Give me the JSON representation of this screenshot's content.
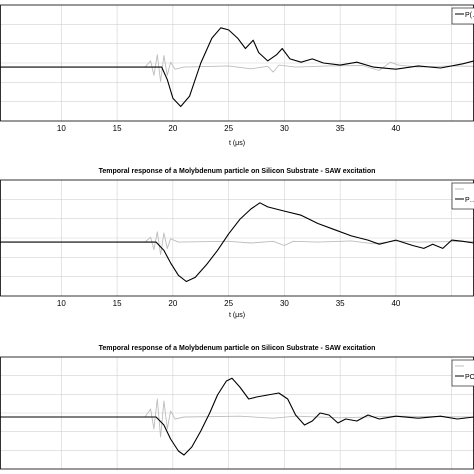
{
  "chart_data": [
    {
      "type": "line",
      "title": "",
      "xlabel": "t (μs)",
      "ylabel": "",
      "xlim": [
        4.5,
        47
      ],
      "x_ticks": [
        10,
        15,
        20,
        25,
        30,
        35,
        40
      ],
      "grid": true,
      "legend": {
        "placement": "top-right",
        "entries": [
          "P(…"
        ]
      },
      "series": [
        {
          "name": "P(…",
          "color": "#000000",
          "points": [
            [
              4.5,
              0
            ],
            [
              19,
              0
            ],
            [
              19.5,
              -0.3
            ],
            [
              20,
              -0.75
            ],
            [
              20.7,
              -0.95
            ],
            [
              21.5,
              -0.7
            ],
            [
              22.5,
              0.1
            ],
            [
              23.5,
              0.7
            ],
            [
              24.3,
              0.95
            ],
            [
              25,
              0.9
            ],
            [
              25.8,
              0.7
            ],
            [
              26.5,
              0.45
            ],
            [
              27.2,
              0.65
            ],
            [
              27.7,
              0.35
            ],
            [
              28.5,
              0.15
            ],
            [
              29.3,
              0.3
            ],
            [
              29.8,
              0.45
            ],
            [
              30.5,
              0.2
            ],
            [
              31.5,
              0.12
            ],
            [
              32.5,
              0.2
            ],
            [
              33.5,
              0.1
            ],
            [
              35,
              0.05
            ],
            [
              36.5,
              0.12
            ],
            [
              38,
              0
            ],
            [
              40,
              -0.05
            ],
            [
              42,
              0.03
            ],
            [
              44,
              -0.02
            ],
            [
              46,
              0.08
            ],
            [
              47,
              0.15
            ]
          ]
        },
        {
          "name": "",
          "color": "#bdbdbd",
          "points": [
            [
              4.5,
              0
            ],
            [
              17.5,
              0
            ],
            [
              18,
              0.15
            ],
            [
              18.3,
              -0.2
            ],
            [
              18.6,
              0.3
            ],
            [
              18.9,
              -0.35
            ],
            [
              19.2,
              0.28
            ],
            [
              19.5,
              -0.2
            ],
            [
              19.8,
              0.12
            ],
            [
              20.2,
              -0.05
            ],
            [
              21,
              0
            ],
            [
              25,
              0.03
            ],
            [
              27,
              -0.04
            ],
            [
              28.5,
              0.02
            ],
            [
              29,
              -0.12
            ],
            [
              29.5,
              0.05
            ],
            [
              31,
              0
            ],
            [
              34,
              0.03
            ],
            [
              37,
              0.04
            ],
            [
              38.5,
              -0.08
            ],
            [
              39.5,
              0.12
            ],
            [
              40.2,
              0.05
            ],
            [
              42,
              0
            ],
            [
              45,
              0.03
            ],
            [
              47,
              0.02
            ]
          ]
        }
      ]
    },
    {
      "type": "line",
      "title": "Temporal response of a Molybdenum particle on Silicon Substrate - SAW excitation",
      "xlabel": "t (μs)",
      "ylabel": "",
      "xlim": [
        4.5,
        47
      ],
      "x_ticks": [
        10,
        15,
        20,
        25,
        30,
        35,
        40
      ],
      "grid": true,
      "legend": {
        "placement": "top-right",
        "entries": [
          "",
          "P…"
        ]
      },
      "series": [
        {
          "name": "P…",
          "color": "#000000",
          "points": [
            [
              4.5,
              0
            ],
            [
              18.5,
              0
            ],
            [
              19.2,
              -0.2
            ],
            [
              19.8,
              -0.5
            ],
            [
              20.5,
              -0.8
            ],
            [
              21.2,
              -0.95
            ],
            [
              22,
              -0.85
            ],
            [
              23,
              -0.55
            ],
            [
              24,
              -0.2
            ],
            [
              25,
              0.2
            ],
            [
              26,
              0.55
            ],
            [
              27,
              0.8
            ],
            [
              27.8,
              0.95
            ],
            [
              28.5,
              0.85
            ],
            [
              30,
              0.75
            ],
            [
              31.5,
              0.65
            ],
            [
              33,
              0.45
            ],
            [
              34.5,
              0.3
            ],
            [
              36,
              0.15
            ],
            [
              37.5,
              0.05
            ],
            [
              38.5,
              -0.05
            ],
            [
              40,
              0.05
            ],
            [
              41.5,
              -0.08
            ],
            [
              42.5,
              -0.15
            ],
            [
              43.3,
              -0.05
            ],
            [
              44.2,
              -0.15
            ],
            [
              45,
              0.05
            ],
            [
              46,
              0.02
            ],
            [
              47,
              -0.02
            ]
          ]
        },
        {
          "name": "",
          "color": "#bdbdbd",
          "points": [
            [
              4.5,
              0
            ],
            [
              17.5,
              0
            ],
            [
              18,
              0.12
            ],
            [
              18.3,
              -0.18
            ],
            [
              18.6,
              0.25
            ],
            [
              18.9,
              -0.3
            ],
            [
              19.2,
              0.22
            ],
            [
              19.5,
              -0.15
            ],
            [
              19.8,
              0.08
            ],
            [
              20.5,
              0
            ],
            [
              25,
              0.02
            ],
            [
              27,
              -0.02
            ],
            [
              29,
              0.02
            ],
            [
              30,
              -0.08
            ],
            [
              30.8,
              0.02
            ],
            [
              33,
              0
            ],
            [
              36,
              0.03
            ],
            [
              38,
              -0.04
            ],
            [
              40,
              0.03
            ],
            [
              42,
              0
            ],
            [
              47,
              0.02
            ]
          ]
        }
      ]
    },
    {
      "type": "line",
      "title": "Temporal response of a Molybdenum particle on Silicon Substrate - SAW excitation",
      "xlabel": "",
      "ylabel": "",
      "xlim": [
        4.5,
        47
      ],
      "x_ticks": [],
      "grid": true,
      "legend": {
        "placement": "top-right",
        "entries": [
          "",
          "PO…"
        ]
      },
      "series": [
        {
          "name": "PO…",
          "color": "#000000",
          "points": [
            [
              4.5,
              0
            ],
            [
              18.5,
              0
            ],
            [
              19.2,
              -0.2
            ],
            [
              19.8,
              -0.55
            ],
            [
              20.5,
              -0.85
            ],
            [
              21,
              -0.95
            ],
            [
              21.7,
              -0.75
            ],
            [
              22.5,
              -0.35
            ],
            [
              23.3,
              0.1
            ],
            [
              24,
              0.55
            ],
            [
              24.8,
              0.9
            ],
            [
              25.3,
              0.97
            ],
            [
              26,
              0.75
            ],
            [
              26.8,
              0.45
            ],
            [
              27.5,
              0.5
            ],
            [
              28.5,
              0.55
            ],
            [
              29.5,
              0.6
            ],
            [
              30.3,
              0.45
            ],
            [
              31,
              0.05
            ],
            [
              31.8,
              -0.2
            ],
            [
              32.5,
              -0.1
            ],
            [
              33.2,
              0.1
            ],
            [
              34,
              0.05
            ],
            [
              34.8,
              -0.15
            ],
            [
              35.5,
              -0.05
            ],
            [
              36.5,
              -0.1
            ],
            [
              37.5,
              0.05
            ],
            [
              38.5,
              -0.05
            ],
            [
              40,
              0.02
            ],
            [
              42,
              -0.03
            ],
            [
              44,
              0.02
            ],
            [
              45.5,
              -0.05
            ],
            [
              47,
              0
            ]
          ]
        },
        {
          "name": "",
          "color": "#bdbdbd",
          "points": [
            [
              4.5,
              0
            ],
            [
              17.5,
              0
            ],
            [
              18,
              0.2
            ],
            [
              18.3,
              -0.3
            ],
            [
              18.6,
              0.45
            ],
            [
              18.9,
              -0.5
            ],
            [
              19.2,
              0.4
            ],
            [
              19.5,
              -0.3
            ],
            [
              19.8,
              0.15
            ],
            [
              20.2,
              -0.05
            ],
            [
              21,
              0
            ],
            [
              26,
              0.02
            ],
            [
              29,
              -0.03
            ],
            [
              31,
              0.02
            ],
            [
              35,
              -0.02
            ],
            [
              40,
              0.02
            ],
            [
              47,
              0
            ]
          ]
        }
      ]
    }
  ]
}
